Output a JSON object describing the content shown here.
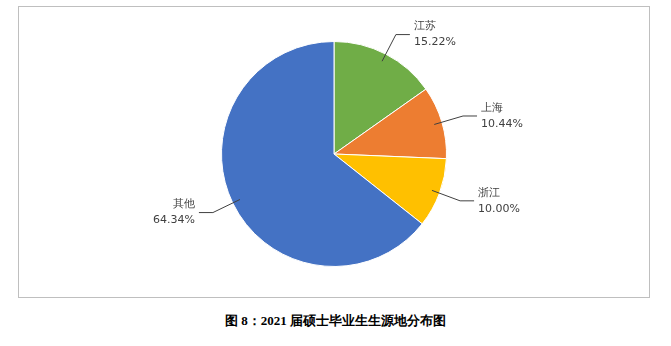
{
  "chart_data": {
    "type": "pie",
    "title": "图 8：2021 届硕士毕业生生源地分布图",
    "categories": [
      "江苏",
      "上海",
      "浙江",
      "其他"
    ],
    "values": [
      15.22,
      10.44,
      10.0,
      64.34
    ],
    "value_labels": [
      "15.22%",
      "10.44%",
      "10.00%",
      "64.34%"
    ],
    "colors": [
      "#70ad47",
      "#ed7d31",
      "#ffc000",
      "#4472c4"
    ],
    "data_labels": true
  }
}
